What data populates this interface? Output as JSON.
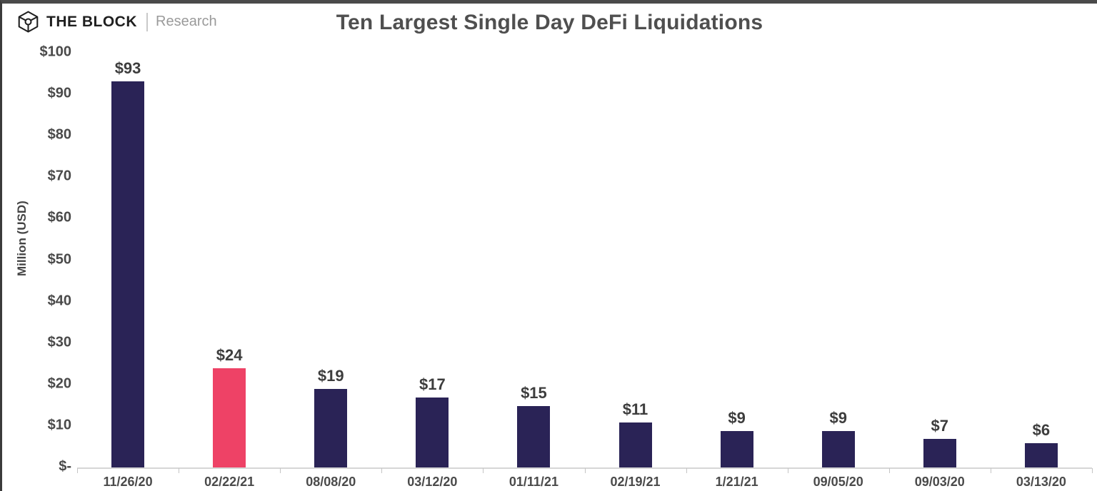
{
  "header": {
    "brand": "THE BLOCK",
    "brand_sub": "Research",
    "title": "Ten Largest Single Day DeFi Liquidations"
  },
  "icons": {
    "logo": "the-block-cube-logo-icon"
  },
  "colors": {
    "bar": "#2a2356",
    "highlight": "#ee4266",
    "axis_line": "#d6d6d6",
    "top_border": "#4a4a4a"
  },
  "chart_data": {
    "type": "bar",
    "title": "Ten Largest Single Day DeFi Liquidations",
    "xlabel": "",
    "ylabel": "Million (USD)",
    "ylim": [
      0,
      100
    ],
    "grid": false,
    "legend": "none",
    "ytick_labels": [
      "$100",
      "$90",
      "$80",
      "$70",
      "$60",
      "$50",
      "$40",
      "$30",
      "$20",
      "$10",
      "$-"
    ],
    "categories": [
      "11/26/20",
      "02/22/21",
      "08/08/20",
      "03/12/20",
      "01/11/21",
      "02/19/21",
      "1/21/21",
      "09/05/20",
      "09/03/20",
      "03/13/20"
    ],
    "values": [
      93,
      24,
      19,
      17,
      15,
      11,
      9,
      9,
      7,
      6
    ],
    "value_labels": [
      "$93",
      "$24",
      "$19",
      "$17",
      "$15",
      "$11",
      "$9",
      "$9",
      "$7",
      "$6"
    ],
    "bar_color": "#2a2356",
    "highlight_color": "#ee4266",
    "highlight_index": 1
  }
}
